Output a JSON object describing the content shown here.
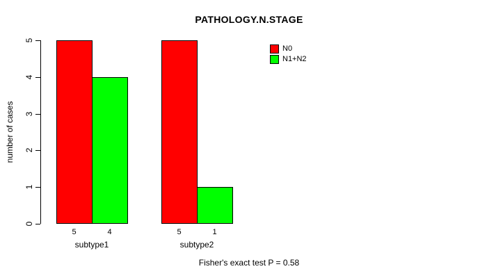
{
  "chart_data": {
    "type": "bar",
    "title": "PATHOLOGY.N.STAGE",
    "ylabel": "number of cases",
    "xlabel": "",
    "ylim": [
      0,
      5
    ],
    "yticks": [
      0,
      1,
      2,
      3,
      4,
      5
    ],
    "categories": [
      "subtype1",
      "subtype2"
    ],
    "series": [
      {
        "name": "N0",
        "color": "#ff0000",
        "values": [
          5,
          5
        ]
      },
      {
        "name": "N1+N2",
        "color": "#00ff00",
        "values": [
          4,
          1
        ]
      }
    ],
    "bar_value_labels": [
      [
        "5",
        "4"
      ],
      [
        "5",
        "1"
      ]
    ],
    "legend_position": "top-right",
    "grid": false,
    "annotation": "Fisher's exact test P = 0.58",
    "bar_border_color": "#000000",
    "axis_color": "#000000",
    "background": "#ffffff"
  }
}
